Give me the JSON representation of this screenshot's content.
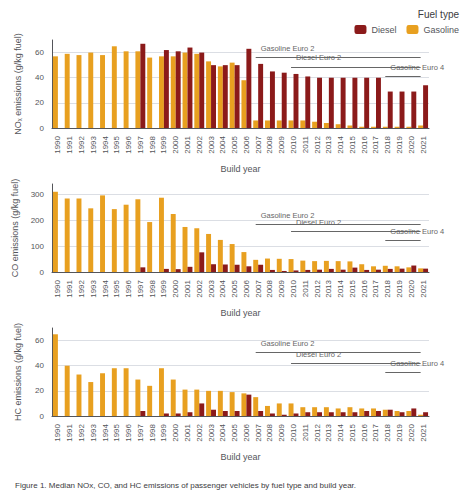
{
  "chart_data": [
    {
      "type": "bar",
      "x_label": "Build year",
      "y_label": "NOₓ emissions (g/kg fuel)",
      "categories": [
        1990,
        1991,
        1992,
        1993,
        1994,
        1995,
        1996,
        1997,
        1998,
        1999,
        2000,
        2001,
        2002,
        2003,
        2004,
        2005,
        2006,
        2007,
        2008,
        2009,
        2010,
        2011,
        2012,
        2013,
        2014,
        2015,
        2016,
        2017,
        2018,
        2019,
        2020,
        2021
      ],
      "series": [
        {
          "name": "Gasoline",
          "color": "#E8A020",
          "values": [
            57,
            59,
            58,
            60,
            58,
            65,
            61,
            61,
            56,
            57,
            57,
            60,
            59,
            53,
            49,
            52,
            38,
            6,
            6,
            6,
            6,
            6,
            5,
            4,
            3,
            2,
            1,
            1,
            1,
            1,
            1,
            2
          ]
        },
        {
          "name": "Diesel",
          "color": "#8B1A1A",
          "values": [
            0,
            0,
            0,
            0,
            0,
            0,
            0,
            67,
            0,
            62,
            61,
            64,
            60,
            50,
            50,
            50,
            63,
            51,
            45,
            44,
            43,
            41,
            40,
            40,
            40,
            40,
            40,
            40,
            29,
            29,
            29,
            34
          ]
        }
      ],
      "ylim": [
        0,
        70
      ],
      "yticks": [
        0,
        20,
        40,
        60
      ],
      "grid": true,
      "annotations": [
        {
          "text": "Gasoline Euro 2",
          "x": 2007,
          "y": 56,
          "color": "#666666"
        },
        {
          "text": "Diesel Euro 2",
          "x": 2010,
          "y": 48.65,
          "color": "#666666"
        },
        {
          "text": "Gasoline Euro 4",
          "x": 2018,
          "y": 41.3,
          "color": "#666666"
        }
      ]
    },
    {
      "type": "bar",
      "x_label": "Build year",
      "y_label": "CO emissions (g/kg fuel)",
      "categories": [
        1990,
        1991,
        1992,
        1993,
        1994,
        1995,
        1996,
        1997,
        1998,
        1999,
        2000,
        2001,
        2002,
        2003,
        2004,
        2005,
        2006,
        2007,
        2008,
        2009,
        2010,
        2011,
        2012,
        2013,
        2014,
        2015,
        2016,
        2017,
        2018,
        2019,
        2020,
        2021
      ],
      "series": [
        {
          "name": "Gasoline",
          "color": "#E8A020",
          "values": [
            310,
            284,
            284,
            246,
            296,
            243,
            260,
            281,
            193,
            287,
            224,
            174,
            169,
            147,
            124,
            108,
            77,
            47,
            52,
            51,
            50,
            44,
            42,
            43,
            42,
            41,
            30,
            22,
            24,
            22,
            18,
            14
          ]
        },
        {
          "name": "Diesel",
          "color": "#8B1A1A",
          "values": [
            0,
            0,
            0,
            0,
            0,
            0,
            0,
            18,
            0,
            12,
            11,
            20,
            76,
            30,
            29,
            28,
            22,
            28,
            8,
            4,
            6,
            8,
            9,
            12,
            9,
            17,
            8,
            9,
            12,
            13,
            25,
            13
          ]
        }
      ],
      "ylim": [
        0,
        340
      ],
      "yticks": [
        0,
        100,
        200,
        300
      ],
      "grid": true,
      "annotations": [
        {
          "text": "Gasoline Euro 2",
          "x": 2007,
          "y": 183.6,
          "color": "#666666"
        },
        {
          "text": "Diesel Euro 2",
          "x": 2010,
          "y": 156.4,
          "color": "#666666"
        },
        {
          "text": "Gasoline Euro 4",
          "x": 2018,
          "y": 122.4,
          "color": "#666666"
        }
      ]
    },
    {
      "type": "bar",
      "x_label": "Build year",
      "y_label": "HC emissions (g/kg fuel)",
      "categories": [
        1990,
        1991,
        1992,
        1993,
        1994,
        1995,
        1996,
        1997,
        1998,
        1999,
        2000,
        2001,
        2002,
        2003,
        2004,
        2005,
        2006,
        2007,
        2008,
        2009,
        2010,
        2011,
        2012,
        2013,
        2014,
        2015,
        2016,
        2017,
        2018,
        2019,
        2020,
        2021
      ],
      "series": [
        {
          "name": "Gasoline",
          "color": "#E8A020",
          "values": [
            65,
            40,
            33,
            27,
            34,
            38,
            38,
            29,
            24,
            38,
            29,
            21,
            21,
            20,
            20,
            19,
            18,
            15,
            8,
            10,
            10,
            7,
            7,
            7,
            6,
            7,
            6,
            6,
            5,
            4,
            4,
            1
          ]
        },
        {
          "name": "Diesel",
          "color": "#8B1A1A",
          "values": [
            0,
            0,
            0,
            0,
            0,
            0,
            0,
            4,
            0,
            2,
            2,
            3,
            10,
            5,
            4,
            4,
            17,
            4,
            2,
            1,
            2,
            3,
            3,
            3,
            3,
            3,
            4,
            4,
            5,
            3,
            6,
            3
          ]
        }
      ],
      "ylim": [
        0,
        70
      ],
      "yticks": [
        0,
        20,
        40,
        60
      ],
      "grid": true,
      "annotations": [
        {
          "text": "Gasoline Euro 2",
          "x": 2007,
          "y": 50.4,
          "color": "#666666"
        },
        {
          "text": "Diesel Euro 2",
          "x": 2010,
          "y": 42,
          "color": "#666666"
        },
        {
          "text": "Gasoline Euro 4",
          "x": 2018,
          "y": 35,
          "color": "#666666"
        }
      ]
    }
  ],
  "legend": "upper right",
  "legend_title": "Fuel type",
  "caption": "Figure 1. Median NOx, CO, and HC emissions of passenger vehicles by fuel type and build year."
}
